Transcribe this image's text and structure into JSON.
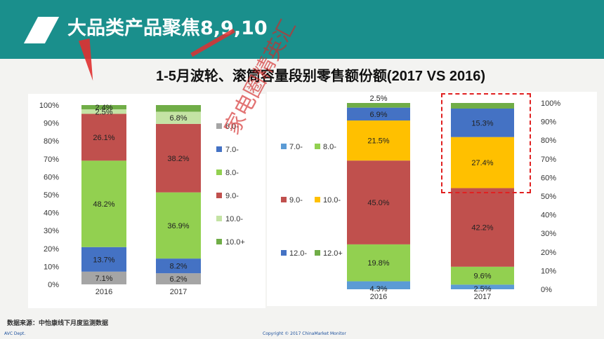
{
  "header": {
    "title": "大品类产品聚焦8,9,10"
  },
  "main_title": "1-5月波轮、滚筒容量段别零售额份额(2017 VS 2016)",
  "source": "数据来源：中怡康线下月度监测数据",
  "footer": {
    "left": "AVC Dept.",
    "center": "Copyright © 2017 ChinaMarket Monitor"
  },
  "watermark": "家电圈精英汇",
  "colors": {
    "6.0-": "#a5a5a5",
    "7.0-": "#4472c4",
    "8.0-": "#92d050",
    "9.0-": "#c0504d",
    "10.0-": "#c4e3a4",
    "10.0+": "#70ad47",
    "r7.0-": "#5b9bd5",
    "r8.0-": "#92d050",
    "r9.0-": "#c0504d",
    "r10.0-": "#ffc000",
    "r12.0-": "#4472c4",
    "r12.0+": "#70ad47",
    "header": "#1a8f8c"
  },
  "chart_data": [
    {
      "type": "bar",
      "stacked": true,
      "percent": true,
      "categories": [
        "2016",
        "2017"
      ],
      "series": [
        {
          "name": "6.0-",
          "values": [
            7.1,
            6.2
          ],
          "labels": [
            "7.1%",
            "6.2%"
          ]
        },
        {
          "name": "7.0-",
          "values": [
            13.7,
            8.2
          ],
          "labels": [
            "13.7%",
            "8.2%"
          ]
        },
        {
          "name": "8.0-",
          "values": [
            48.2,
            36.9
          ],
          "labels": [
            "48.2%",
            "36.9%"
          ]
        },
        {
          "name": "9.0-",
          "values": [
            26.1,
            38.2
          ],
          "labels": [
            "26.1%",
            "38.2%"
          ]
        },
        {
          "name": "10.0-",
          "values": [
            2.5,
            6.8
          ],
          "labels": [
            "2.5%",
            "6.8%"
          ]
        },
        {
          "name": "10.0+",
          "values": [
            2.4,
            3.7
          ],
          "labels": [
            "2.4%",
            ""
          ]
        }
      ],
      "yticks": [
        "0%",
        "10%",
        "20%",
        "30%",
        "40%",
        "50%",
        "60%",
        "70%",
        "80%",
        "90%",
        "100%"
      ],
      "ylim": [
        0,
        100
      ],
      "legend": "right"
    },
    {
      "type": "bar",
      "stacked": true,
      "percent": true,
      "categories": [
        "2016",
        "2017"
      ],
      "series": [
        {
          "name": "7.0-",
          "values": [
            4.3,
            2.5
          ],
          "labels": [
            "4.3%",
            "2.5%"
          ]
        },
        {
          "name": "8.0-",
          "values": [
            19.8,
            9.6
          ],
          "labels": [
            "19.8%",
            "9.6%"
          ]
        },
        {
          "name": "9.0-",
          "values": [
            45.0,
            42.2
          ],
          "labels": [
            "45.0%",
            "42.2%"
          ]
        },
        {
          "name": "10.0-",
          "values": [
            21.5,
            27.4
          ],
          "labels": [
            "21.5%",
            "27.4%"
          ]
        },
        {
          "name": "12.0-",
          "values": [
            6.9,
            15.3
          ],
          "labels": [
            "6.9%",
            "15.3%"
          ]
        },
        {
          "name": "12.0+",
          "values": [
            2.5,
            3.0
          ],
          "labels": [
            "2.5%",
            ""
          ]
        }
      ],
      "yticks": [
        "0%",
        "10%",
        "20%",
        "30%",
        "40%",
        "50%",
        "60%",
        "70%",
        "80%",
        "90%",
        "100%"
      ],
      "ylim": [
        0,
        100
      ],
      "legend": "left"
    }
  ]
}
